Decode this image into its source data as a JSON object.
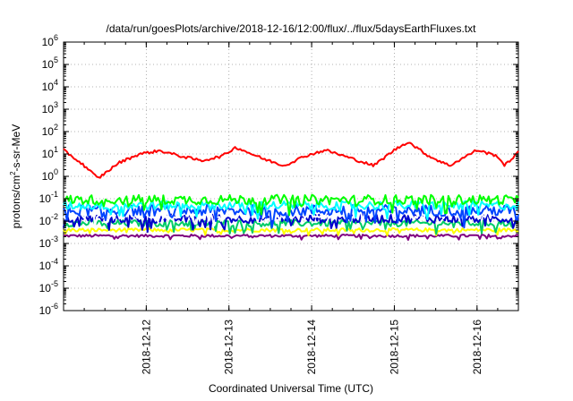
{
  "chart_data": {
    "type": "line",
    "title": "/data/run/goesPlots/archive/2018-12-16/12:00/flux/../flux/5daysEarthFluxes.txt",
    "xlabel": "Coordinated Universal Time (UTC)",
    "ylabel": {
      "base": "protons/cm",
      "sup": "2",
      "rest": "-s-sr-MeV"
    },
    "y_scale": "log",
    "ylim": [
      1e-06,
      1000000.0
    ],
    "y_ticks": [
      {
        "value": 1e-06,
        "base": "10",
        "exp": "-6"
      },
      {
        "value": 1e-05,
        "base": "10",
        "exp": "-5"
      },
      {
        "value": 0.0001,
        "base": "10",
        "exp": "-4"
      },
      {
        "value": 0.001,
        "base": "10",
        "exp": "-3"
      },
      {
        "value": 0.01,
        "base": "10",
        "exp": "-2"
      },
      {
        "value": 0.1,
        "base": "10",
        "exp": "-1"
      },
      {
        "value": 1,
        "base": "10",
        "exp": "0"
      },
      {
        "value": 10,
        "base": "10",
        "exp": "1"
      },
      {
        "value": 100,
        "base": "10",
        "exp": "2"
      },
      {
        "value": 1000.0,
        "base": "10",
        "exp": "3"
      },
      {
        "value": 10000.0,
        "base": "10",
        "exp": "4"
      },
      {
        "value": 100000.0,
        "base": "10",
        "exp": "5"
      },
      {
        "value": 1000000.0,
        "base": "10",
        "exp": "6"
      }
    ],
    "xlim": [
      "2018-12-11T00:00",
      "2018-12-16T12:00"
    ],
    "x_ticks": [
      {
        "value": "2018-12-12T00:00",
        "label": "2018-12-12"
      },
      {
        "value": "2018-12-13T00:00",
        "label": "2018-12-13"
      },
      {
        "value": "2018-12-14T00:00",
        "label": "2018-12-14"
      },
      {
        "value": "2018-12-15T00:00",
        "label": "2018-12-15"
      },
      {
        "value": "2018-12-16T00:00",
        "label": "2018-12-16"
      }
    ],
    "grid": true,
    "legend": "none",
    "series": [
      {
        "color": "#ff0000",
        "base": 8,
        "amp": 0.45,
        "noise": 0.12,
        "points": [
          [
            "2018-12-11T00:00",
            15
          ],
          [
            "2018-12-11T06:00",
            3
          ],
          [
            "2018-12-11T10:00",
            0.8
          ],
          [
            "2018-12-11T16:00",
            4
          ],
          [
            "2018-12-11T22:00",
            10
          ],
          [
            "2018-12-12T04:00",
            14
          ],
          [
            "2018-12-12T10:00",
            8
          ],
          [
            "2018-12-12T16:00",
            5
          ],
          [
            "2018-12-12T22:00",
            8
          ],
          [
            "2018-12-13T02:00",
            20
          ],
          [
            "2018-12-13T10:00",
            6
          ],
          [
            "2018-12-13T16:00",
            3
          ],
          [
            "2018-12-13T22:00",
            8
          ],
          [
            "2018-12-14T04:00",
            15
          ],
          [
            "2018-12-14T12:00",
            6
          ],
          [
            "2018-12-14T18:00",
            3
          ],
          [
            "2018-12-15T00:00",
            15
          ],
          [
            "2018-12-15T04:00",
            35
          ],
          [
            "2018-12-15T10:00",
            8
          ],
          [
            "2018-12-15T16:00",
            3
          ],
          [
            "2018-12-16T00:00",
            15
          ],
          [
            "2018-12-16T06:00",
            8
          ],
          [
            "2018-12-16T08:00",
            3
          ],
          [
            "2018-12-16T12:00",
            12
          ]
        ]
      },
      {
        "color": "#00ff00",
        "level": 0.09,
        "jitter": 0.22
      },
      {
        "color": "#00ffff",
        "level": 0.05,
        "jitter": 0.2
      },
      {
        "color": "#0044ff",
        "level": 0.03,
        "jitter": 0.25
      },
      {
        "color": "#ffffff",
        "level": 0.018,
        "jitter": 0.15
      },
      {
        "color": "#0000cc",
        "level": 0.013,
        "jitter": 0.2
      },
      {
        "color": "#00cc66",
        "level": 0.008,
        "jitter": 0.15
      },
      {
        "color": "#ffff00",
        "level": 0.004,
        "jitter": 0.08
      },
      {
        "color": "#800080",
        "level": 0.0022,
        "jitter": 0.06
      }
    ]
  }
}
